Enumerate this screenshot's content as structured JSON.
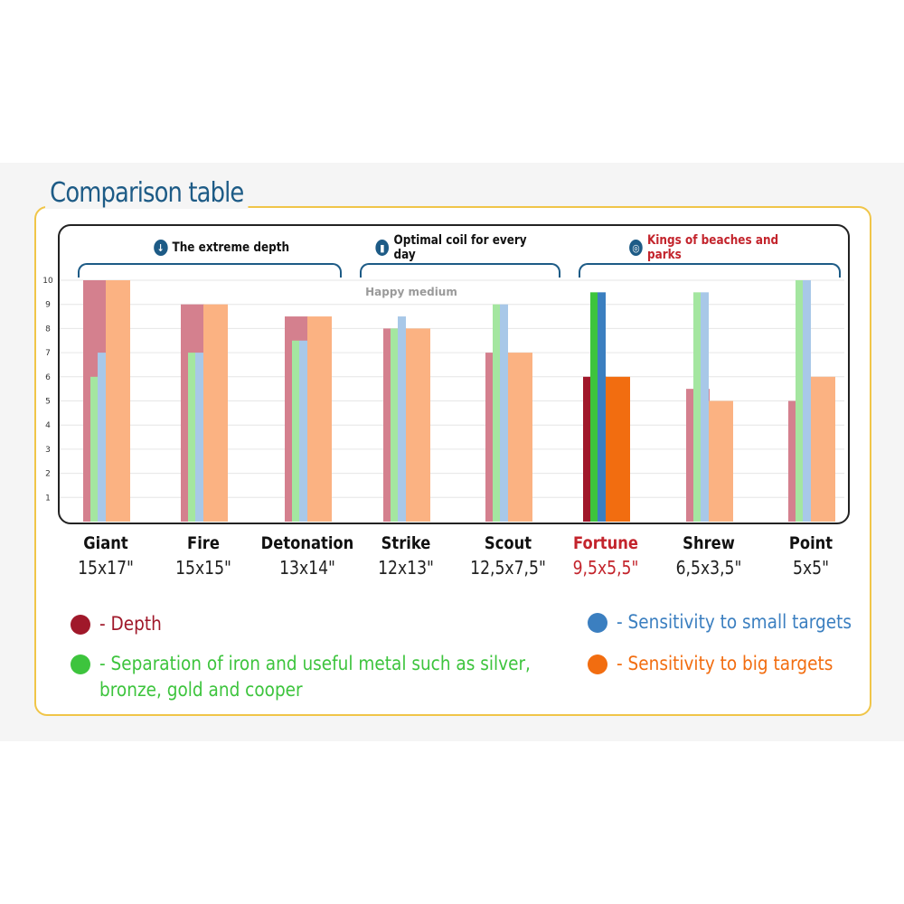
{
  "page": {
    "title": "Comparison table",
    "groups": [
      {
        "label": "The extreme depth",
        "icon": "arrow-down-icon",
        "icon_glyph": "↓"
      },
      {
        "label": "Optimal coil for every day",
        "icon": "bar-chart-icon",
        "icon_glyph": "▮"
      },
      {
        "label": "Kings of beaches and parks",
        "icon": "target-icon",
        "icon_glyph": "◎"
      }
    ],
    "annotation": "Happy medium"
  },
  "models": [
    {
      "name": "Giant",
      "size": "15x17\""
    },
    {
      "name": "Fire",
      "size": "15x15\""
    },
    {
      "name": "Detonation",
      "size": "13x14\""
    },
    {
      "name": "Strike",
      "size": "12x13\""
    },
    {
      "name": "Scout",
      "size": "12,5x7,5\""
    },
    {
      "name": "Fortune",
      "size": "9,5x5,5\"",
      "highlighted": true
    },
    {
      "name": "Shrew",
      "size": "6,5x3,5\""
    },
    {
      "name": "Point",
      "size": "5x5\""
    }
  ],
  "legend": [
    {
      "label": "- Depth",
      "color": "#a0182a"
    },
    {
      "label": "- Separation of iron and useful metal such as silver,\nbronze, gold and cooper",
      "color": "#3dc43d"
    },
    {
      "label": "- Sensitivity to small targets",
      "color": "#3b7fc0"
    },
    {
      "label": "- Sensitivity to big targets",
      "color": "#f26d10"
    }
  ],
  "chart_data": {
    "type": "bar",
    "categories": [
      "Giant",
      "Fire",
      "Detonation",
      "Strike",
      "Scout",
      "Fortune",
      "Shrew",
      "Point"
    ],
    "series": [
      {
        "name": "Depth",
        "values": [
          10,
          9,
          8.5,
          8,
          7,
          6,
          5.5,
          5
        ]
      },
      {
        "name": "Separation of iron and useful metal such as silver, bronze, gold and cooper",
        "values": [
          6,
          7,
          7.5,
          8,
          9,
          9.5,
          9.5,
          10
        ]
      },
      {
        "name": "Sensitivity to small targets",
        "values": [
          7,
          7,
          7.5,
          8.5,
          9,
          9.5,
          9.5,
          10
        ]
      },
      {
        "name": "Sensitivity to big targets",
        "values": [
          10,
          9,
          8.5,
          8,
          7,
          6,
          5,
          6
        ]
      }
    ],
    "yticks": [
      1,
      2,
      3,
      4,
      5,
      6,
      7,
      8,
      9,
      10
    ],
    "ylim": [
      0,
      10
    ],
    "grid": true,
    "highlight_category": "Fortune",
    "colors_muted": [
      "#d4808e",
      "#a4e6a0",
      "#a8c8e8",
      "#fbb282"
    ],
    "colors_bright": [
      "#a0182a",
      "#3dc43d",
      "#3b7fc0",
      "#f26d10"
    ]
  }
}
